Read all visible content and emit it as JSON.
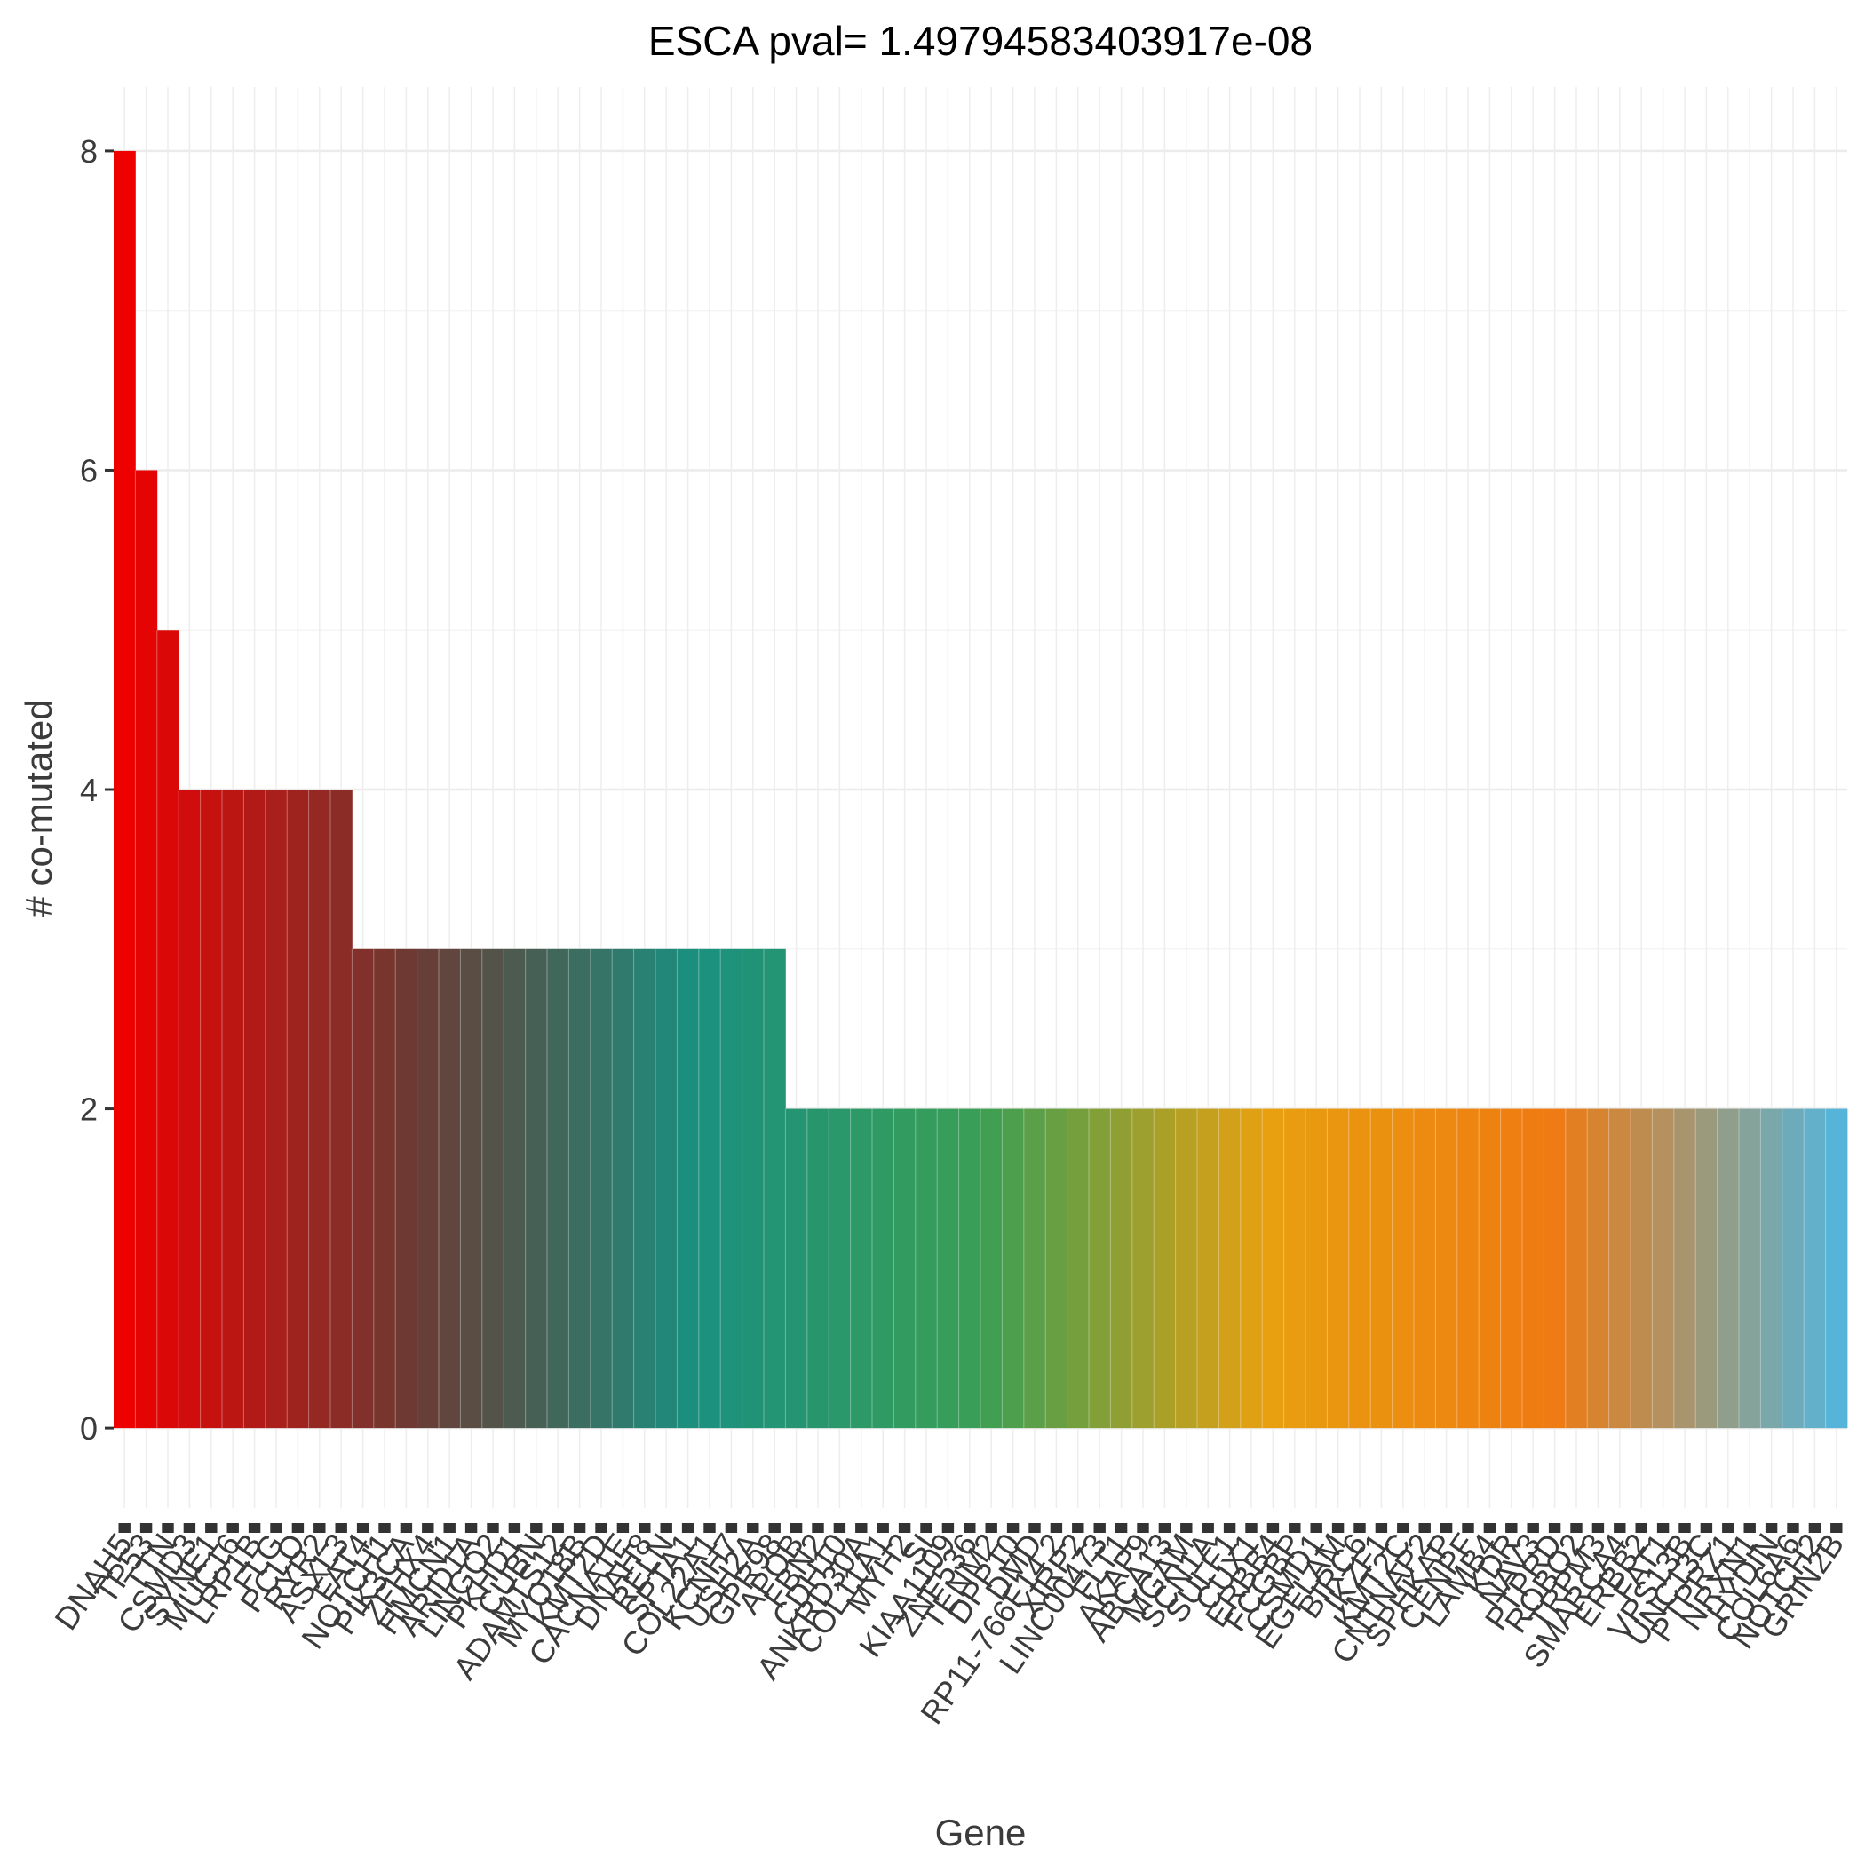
{
  "chart_data": {
    "type": "bar",
    "title": "ESCA pval= 1.49794583403917e-08",
    "xlabel": "Gene",
    "ylabel": "# co-mutated",
    "ylim": [
      -0.5,
      8.4
    ],
    "yticks": [
      0,
      2,
      4,
      6,
      8
    ],
    "grid": true,
    "legend": "none",
    "gradient_colors": [
      "#ee0000",
      "#6b3a33",
      "#1a9080",
      "#3a9f55",
      "#e8a010",
      "#f07a10",
      "#56b4d8"
    ],
    "categories": [
      "DNAH5",
      "TP53",
      "TTN",
      "CSMD3",
      "SYNE1",
      "MUC16",
      "LRP1B",
      "FLG",
      "PCLO",
      "RYR2",
      "ASXL3",
      "FAT4",
      "NOTCH1",
      "PIK3CA",
      "ZFHX4",
      "HMCN1",
      "ARID1A",
      "LINGO2",
      "PKHD1",
      "CUBN",
      "ADAMTS12",
      "MYO18B",
      "KMT2D",
      "CACNA1E",
      "DNAH8",
      "RELN",
      "SPTA1",
      "COL22A1",
      "KCNH7",
      "USH2A",
      "GPR98",
      "APOB",
      "FBN2",
      "CDH10",
      "ANKRD30A",
      "COL11A1",
      "MYH2",
      "SI",
      "KIAA1109",
      "ZNF536",
      "TENM2",
      "DPP10",
      "DMD",
      "RP11-766F14.2",
      "XIRP2",
      "LINC00473",
      "FLT1",
      "AKAP9",
      "ABCA13",
      "MGAM",
      "SCN1A",
      "SULF1",
      "CUX1",
      "ERBB4",
      "FCGBP",
      "CSMD1",
      "EGFLAM",
      "BIRC6",
      "IKZF1",
      "KMT2C",
      "CNTNAP2",
      "SPHKAP",
      "CENPF",
      "LAMB4",
      "KDR",
      "NAV3",
      "PTPRD",
      "ROBO2",
      "TRPM3",
      "SMARCA4",
      "ERBB2",
      "FAT1",
      "VPS13B",
      "UNC13C",
      "PTPRZ1",
      "NRXN1",
      "HYDIN",
      "COL6A6",
      "NOTCH2",
      "GRIN2B"
    ],
    "values": [
      8,
      6,
      5,
      4,
      4,
      4,
      4,
      4,
      4,
      4,
      4,
      3,
      3,
      3,
      3,
      3,
      3,
      3,
      3,
      3,
      3,
      3,
      3,
      3,
      3,
      3,
      3,
      3,
      3,
      3,
      3,
      2,
      2,
      2,
      2,
      2,
      2,
      2,
      2,
      2,
      2,
      2,
      2,
      2,
      2,
      2,
      2,
      2,
      2,
      2,
      2,
      2,
      2,
      2,
      2,
      2,
      2,
      2,
      2,
      2,
      2,
      2,
      2,
      2,
      2,
      2,
      2,
      2,
      2,
      2,
      2,
      2,
      2,
      2,
      2,
      2,
      2,
      2,
      2,
      2
    ]
  }
}
